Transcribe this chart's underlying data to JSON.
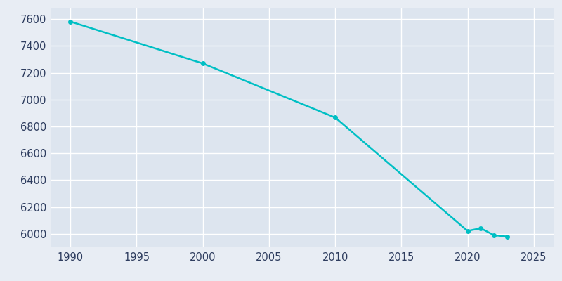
{
  "years": [
    1990,
    2000,
    2010,
    2020,
    2021,
    2022,
    2023
  ],
  "population": [
    7582,
    7270,
    6867,
    6022,
    6042,
    5990,
    5980
  ],
  "line_color": "#00BFC4",
  "marker_color": "#00BFC4",
  "bg_color": "#E8EDF4",
  "plot_bg_color": "#DDE5EF",
  "grid_color": "#FFFFFF",
  "tick_color": "#2E3D5F",
  "xlim": [
    1988.5,
    2026.5
  ],
  "ylim": [
    5900,
    7680
  ],
  "xticks": [
    1990,
    1995,
    2000,
    2005,
    2010,
    2015,
    2020,
    2025
  ],
  "yticks": [
    6000,
    6200,
    6400,
    6600,
    6800,
    7000,
    7200,
    7400,
    7600
  ]
}
